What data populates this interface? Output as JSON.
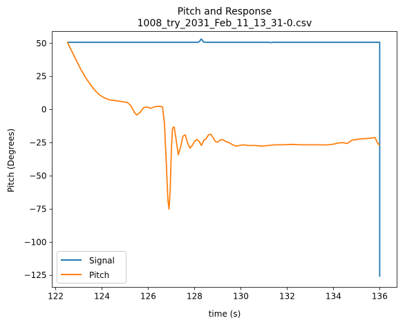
{
  "chart_data": {
    "type": "line",
    "title": "Pitch and Response",
    "subtitle": "1008_try_2031_Feb_11_13_31-0.csv",
    "xlabel": "time (s)",
    "ylabel": "Pitch (Degrees)",
    "xlim": [
      121.85,
      136.75
    ],
    "ylim": [
      -134,
      59
    ],
    "xticks": [
      122,
      124,
      126,
      128,
      130,
      132,
      134,
      136
    ],
    "xtick_labels": [
      "122",
      "124",
      "126",
      "128",
      "130",
      "132",
      "134",
      "136"
    ],
    "yticks": [
      50,
      25,
      0,
      -25,
      -50,
      -75,
      -100,
      -125
    ],
    "ytick_labels": [
      "50",
      "25",
      "0",
      "−25",
      "−50",
      "−75",
      "−100",
      "−125"
    ],
    "grid": false,
    "legend_position": "lower-left",
    "series": [
      {
        "name": "Signal",
        "color": "#1f77b4",
        "x": [
          122.5,
          128.15,
          128.22,
          128.28,
          128.32,
          128.38,
          128.45,
          128.55,
          131.25,
          131.3,
          131.35,
          136.0,
          136.0
        ],
        "y": [
          50.8,
          50.8,
          51.5,
          53.2,
          52.8,
          51.2,
          50.8,
          50.8,
          50.8,
          50.5,
          50.8,
          50.8,
          -126
        ]
      },
      {
        "name": "Pitch",
        "color": "#ff7f0e",
        "x": [
          122.5,
          122.7,
          122.9,
          123.1,
          123.3,
          123.5,
          123.7,
          123.9,
          124.1,
          124.3,
          124.5,
          124.7,
          124.9,
          125.1,
          125.25,
          125.4,
          125.5,
          125.65,
          125.8,
          125.95,
          126.1,
          126.25,
          126.4,
          126.5,
          126.55,
          126.62,
          126.7,
          126.78,
          126.85,
          126.9,
          126.95,
          127.0,
          127.05,
          127.12,
          127.2,
          127.3,
          127.4,
          127.5,
          127.6,
          127.7,
          127.8,
          127.9,
          128.0,
          128.1,
          128.2,
          128.3,
          128.4,
          128.5,
          128.6,
          128.7,
          128.8,
          128.9,
          129.0,
          129.1,
          129.2,
          129.35,
          129.5,
          129.65,
          129.8,
          129.95,
          130.1,
          130.3,
          130.6,
          130.9,
          131.2,
          131.5,
          131.8,
          132.2,
          132.6,
          133.0,
          133.4,
          133.7,
          134.0,
          134.2,
          134.4,
          134.6,
          134.8,
          135.0,
          135.2,
          135.4,
          135.6,
          135.8,
          135.9,
          136.0
        ],
        "y": [
          51,
          44,
          37,
          30,
          24,
          19,
          14.5,
          11,
          9,
          7.5,
          7,
          6.5,
          6,
          5.5,
          3,
          -2,
          -4,
          -2,
          1.5,
          2,
          1,
          2,
          2.5,
          2.5,
          2.5,
          2,
          -10,
          -40,
          -68,
          -75,
          -60,
          -30,
          -14,
          -13,
          -22,
          -34,
          -28,
          -20,
          -19,
          -25,
          -29,
          -27,
          -24,
          -22.5,
          -24,
          -27,
          -23,
          -22,
          -19,
          -18.5,
          -21,
          -24,
          -24.5,
          -23,
          -22.5,
          -24,
          -25,
          -26.5,
          -27.5,
          -27,
          -26.5,
          -27,
          -27,
          -27.5,
          -27,
          -26.5,
          -26.5,
          -26.2,
          -26.5,
          -26.5,
          -26.5,
          -26.6,
          -26,
          -25.2,
          -24.8,
          -25.5,
          -23,
          -22.5,
          -22,
          -21.8,
          -21.5,
          -21,
          -25,
          -27
        ]
      }
    ]
  }
}
